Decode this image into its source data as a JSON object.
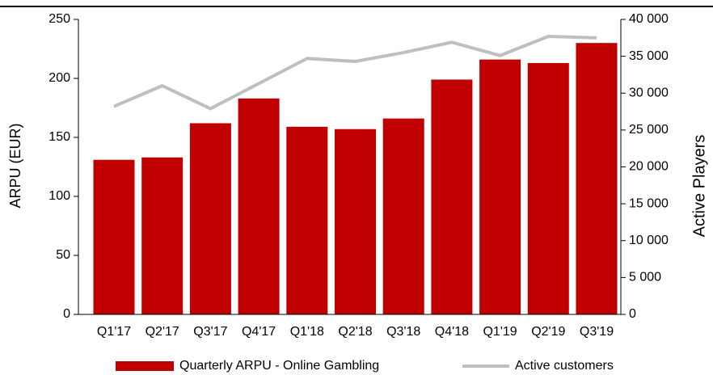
{
  "chart_data": {
    "type": "bar_line",
    "categories": [
      "Q1'17",
      "Q2'17",
      "Q3'17",
      "Q4'17",
      "Q1'18",
      "Q2'18",
      "Q3'18",
      "Q4'18",
      "Q1'19",
      "Q2'19",
      "Q3'19"
    ],
    "series": [
      {
        "name": "Quarterly ARPU - Online Gambling",
        "type": "bar",
        "color": "#c00000",
        "axis": "y",
        "values": [
          131,
          133,
          162,
          183,
          159,
          157,
          166,
          199,
          216,
          213,
          230
        ]
      },
      {
        "name": "Active customers",
        "type": "line",
        "color": "#bfbfbf",
        "axis": "y2",
        "values": [
          28200,
          31000,
          27900,
          31300,
          34700,
          34300,
          35500,
          36900,
          35100,
          37700,
          37500
        ]
      }
    ],
    "ylabel": "ARPU (EUR)",
    "y2label": "Active Players",
    "ylim": [
      0,
      250
    ],
    "yticks": [
      0,
      50,
      100,
      150,
      200,
      250
    ],
    "y2lim": [
      0,
      40000
    ],
    "y2ticks": [
      0,
      {
        "value": 5000,
        "label": "5 000"
      },
      {
        "value": 10000,
        "label": "10 000"
      },
      {
        "value": 15000,
        "label": "15 000"
      },
      {
        "value": 20000,
        "label": "20 000"
      },
      {
        "value": 25000,
        "label": "25 000"
      },
      {
        "value": 30000,
        "label": "30 000"
      },
      {
        "value": 35000,
        "label": "35 000"
      },
      {
        "value": 40000,
        "label": "40 000"
      }
    ],
    "grid": false,
    "legend": "bottom"
  }
}
